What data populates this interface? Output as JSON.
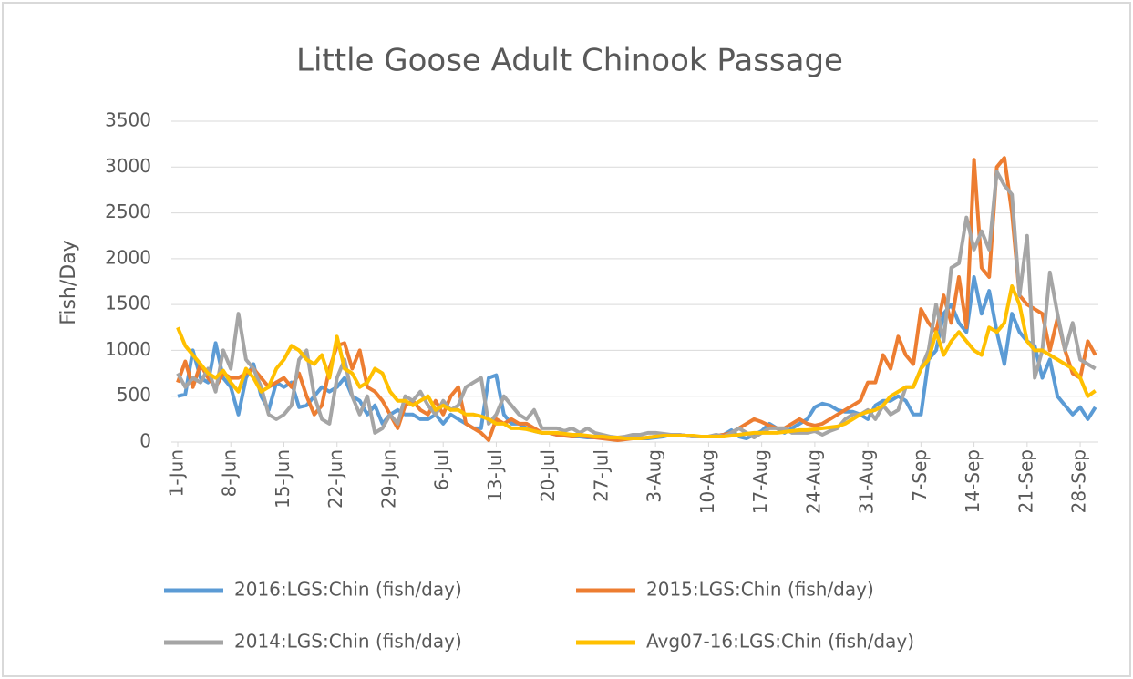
{
  "chart_data": {
    "type": "line",
    "title": "Little Goose Adult Chinook Passage",
    "y_label": "Fish/Day",
    "categories": [
      "1-Jun",
      null,
      null,
      null,
      null,
      null,
      null,
      "8-Jun",
      null,
      null,
      null,
      null,
      null,
      null,
      "15-Jun",
      null,
      null,
      null,
      null,
      null,
      null,
      "22-Jun",
      null,
      null,
      null,
      null,
      null,
      null,
      "29-Jun",
      null,
      null,
      null,
      null,
      null,
      null,
      "6-Jul",
      null,
      null,
      null,
      null,
      null,
      null,
      "13-Jul",
      null,
      null,
      null,
      null,
      null,
      null,
      "20-Jul",
      null,
      null,
      null,
      null,
      null,
      null,
      "27-Jul",
      null,
      null,
      null,
      null,
      null,
      null,
      "3-Aug",
      null,
      null,
      null,
      null,
      null,
      null,
      "10-Aug",
      null,
      null,
      null,
      null,
      null,
      null,
      "17-Aug",
      null,
      null,
      null,
      null,
      null,
      null,
      "24-Aug",
      null,
      null,
      null,
      null,
      null,
      null,
      "31-Aug",
      null,
      null,
      null,
      null,
      null,
      null,
      "7-Sep",
      null,
      null,
      null,
      null,
      null,
      null,
      "14-Sep",
      null,
      null,
      null,
      null,
      null,
      null,
      "21-Sep",
      null,
      null,
      null,
      null,
      null,
      null,
      "28-Sep",
      null,
      null
    ],
    "ylim": [
      0,
      3500
    ],
    "yticks": [
      0,
      500,
      1000,
      1500,
      2000,
      2500,
      3000,
      3500
    ],
    "grid": true,
    "series": [
      {
        "name": "2016:LGS:Chin (fish/day)",
        "color": "#5b9bd5",
        "values": [
          500,
          520,
          1000,
          700,
          650,
          1080,
          700,
          600,
          300,
          700,
          850,
          500,
          350,
          650,
          600,
          650,
          380,
          400,
          500,
          600,
          550,
          600,
          700,
          500,
          450,
          300,
          400,
          200,
          300,
          350,
          300,
          300,
          250,
          250,
          300,
          200,
          300,
          250,
          200,
          150,
          150,
          700,
          730,
          300,
          200,
          200,
          150,
          120,
          100,
          100,
          80,
          80,
          60,
          60,
          50,
          50,
          50,
          40,
          40,
          40,
          40,
          40,
          40,
          50,
          60,
          80,
          80,
          70,
          60,
          60,
          60,
          70,
          80,
          130,
          60,
          40,
          80,
          120,
          200,
          150,
          100,
          150,
          200,
          250,
          380,
          420,
          400,
          350,
          330,
          330,
          300,
          250,
          400,
          450,
          450,
          500,
          450,
          300,
          300,
          900,
          1000,
          1400,
          1500,
          1300,
          1200,
          1800,
          1400,
          1650,
          1200,
          850,
          1400,
          1200,
          1100,
          1050,
          700,
          900,
          500,
          400,
          300,
          380,
          250,
          380
        ]
      },
      {
        "name": "2015:LGS:Chin (fish/day)",
        "color": "#ed7d31",
        "values": [
          650,
          880,
          600,
          850,
          700,
          600,
          750,
          700,
          700,
          750,
          800,
          700,
          600,
          650,
          700,
          600,
          750,
          500,
          300,
          400,
          800,
          1050,
          1080,
          800,
          1000,
          600,
          550,
          450,
          300,
          150,
          400,
          450,
          350,
          300,
          450,
          300,
          500,
          600,
          200,
          150,
          100,
          20,
          250,
          200,
          250,
          200,
          200,
          150,
          100,
          100,
          80,
          70,
          60,
          70,
          60,
          50,
          40,
          30,
          20,
          30,
          40,
          40,
          50,
          60,
          70,
          80,
          80,
          70,
          60,
          60,
          60,
          70,
          80,
          100,
          150,
          200,
          250,
          220,
          180,
          150,
          150,
          200,
          250,
          200,
          180,
          200,
          250,
          300,
          350,
          400,
          450,
          650,
          650,
          950,
          800,
          1150,
          950,
          850,
          1450,
          1300,
          1200,
          1600,
          1300,
          1800,
          1250,
          3080,
          1900,
          1800,
          3000,
          3100,
          2500,
          1600,
          1500,
          1450,
          1400,
          1000,
          1350,
          1000,
          750,
          700,
          1100,
          950
        ]
      },
      {
        "name": "2014:LGS:Chin (fish/day)",
        "color": "#a5a5a5",
        "values": [
          750,
          600,
          700,
          650,
          800,
          550,
          1000,
          800,
          1400,
          900,
          800,
          600,
          300,
          250,
          300,
          400,
          900,
          1000,
          500,
          250,
          200,
          700,
          900,
          500,
          300,
          500,
          100,
          150,
          300,
          200,
          500,
          450,
          550,
          400,
          300,
          450,
          350,
          400,
          600,
          650,
          700,
          200,
          300,
          500,
          400,
          300,
          250,
          350,
          150,
          150,
          150,
          120,
          150,
          100,
          150,
          100,
          80,
          60,
          50,
          60,
          80,
          80,
          100,
          100,
          90,
          80,
          80,
          70,
          60,
          60,
          60,
          80,
          60,
          100,
          150,
          100,
          50,
          100,
          150,
          150,
          150,
          100,
          100,
          100,
          120,
          80,
          120,
          150,
          250,
          300,
          300,
          350,
          250,
          400,
          300,
          350,
          600,
          600,
          800,
          1000,
          1500,
          1100,
          1900,
          1950,
          2450,
          2100,
          2300,
          2100,
          2950,
          2800,
          2700,
          1600,
          2250,
          700,
          1000,
          1850,
          1400,
          1000,
          1300,
          900,
          850,
          800
        ]
      },
      {
        "name": "Avg07-16:LGS:Chin (fish/day)",
        "color": "#ffc000",
        "values": [
          1250,
          1050,
          950,
          850,
          750,
          700,
          780,
          650,
          550,
          800,
          700,
          550,
          600,
          800,
          900,
          1050,
          1000,
          900,
          850,
          950,
          700,
          1150,
          800,
          750,
          600,
          650,
          800,
          750,
          550,
          450,
          450,
          400,
          450,
          500,
          350,
          400,
          350,
          350,
          300,
          300,
          280,
          250,
          200,
          200,
          150,
          150,
          140,
          120,
          100,
          100,
          100,
          90,
          80,
          80,
          70,
          60,
          60,
          50,
          50,
          40,
          40,
          40,
          50,
          60,
          70,
          70,
          70,
          70,
          70,
          60,
          60,
          60,
          60,
          70,
          80,
          90,
          100,
          100,
          100,
          100,
          110,
          120,
          130,
          130,
          140,
          150,
          160,
          170,
          200,
          250,
          300,
          330,
          350,
          400,
          500,
          550,
          600,
          600,
          800,
          900,
          1200,
          950,
          1100,
          1200,
          1100,
          1000,
          950,
          1250,
          1200,
          1300,
          1700,
          1500,
          1100,
          1000,
          1000,
          950,
          900,
          850,
          800,
          700,
          500,
          560
        ]
      }
    ]
  }
}
